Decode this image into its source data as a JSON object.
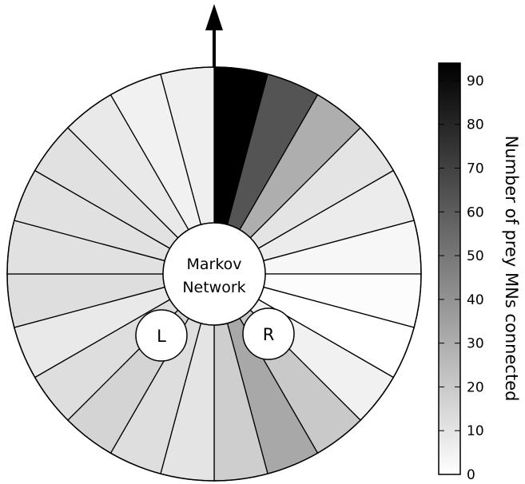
{
  "diagram": {
    "center_label_line1": "Markov",
    "center_label_line2": "Network",
    "left_label": "L",
    "right_label": "R"
  },
  "colorbar": {
    "label": "Number of prey MNs connected",
    "min": 0,
    "max": 94,
    "ticks": [
      "0",
      "10",
      "20",
      "30",
      "40",
      "50",
      "60",
      "70",
      "80",
      "90"
    ],
    "tick_values": [
      0,
      10,
      20,
      30,
      40,
      50,
      60,
      70,
      80,
      90
    ]
  },
  "chart_data": {
    "type": "heatmap",
    "description_free": true,
    "sector_count": 24,
    "start_direction": "up",
    "order": "clockwise",
    "values": [
      94,
      63,
      30,
      10,
      7,
      3,
      1,
      0,
      5,
      20,
      32,
      18,
      10,
      12,
      16,
      12,
      8,
      12,
      11,
      11,
      11,
      8,
      5,
      6
    ]
  }
}
